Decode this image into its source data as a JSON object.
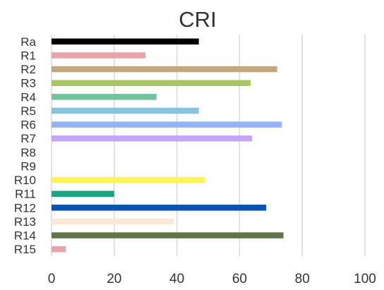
{
  "chart_data": {
    "type": "bar",
    "orientation": "horizontal",
    "title": "CRI",
    "xlabel": "",
    "ylabel": "",
    "xlim": [
      0,
      100
    ],
    "x_ticks": [
      0,
      20,
      40,
      60,
      80,
      100
    ],
    "grid": "vertical",
    "categories": [
      "Ra",
      "R1",
      "R2",
      "R3",
      "R4",
      "R5",
      "R6",
      "R7",
      "R8",
      "R9",
      "R10",
      "R11",
      "R12",
      "R13",
      "R14",
      "R15"
    ],
    "values": [
      47,
      30,
      72,
      63.5,
      33.5,
      47,
      73.5,
      64,
      0,
      0,
      49,
      20,
      68.5,
      39,
      74,
      4.5
    ],
    "colors": [
      "#000000",
      "#e8a4a8",
      "#c4a77a",
      "#a9c462",
      "#72c29a",
      "#86c4de",
      "#92b4f2",
      "#c8a4f6",
      "#cccccc",
      "#cccccc",
      "#fff456",
      "#13a783",
      "#0553b3",
      "#fde7d6",
      "#627549",
      "#e8a4a8"
    ]
  }
}
